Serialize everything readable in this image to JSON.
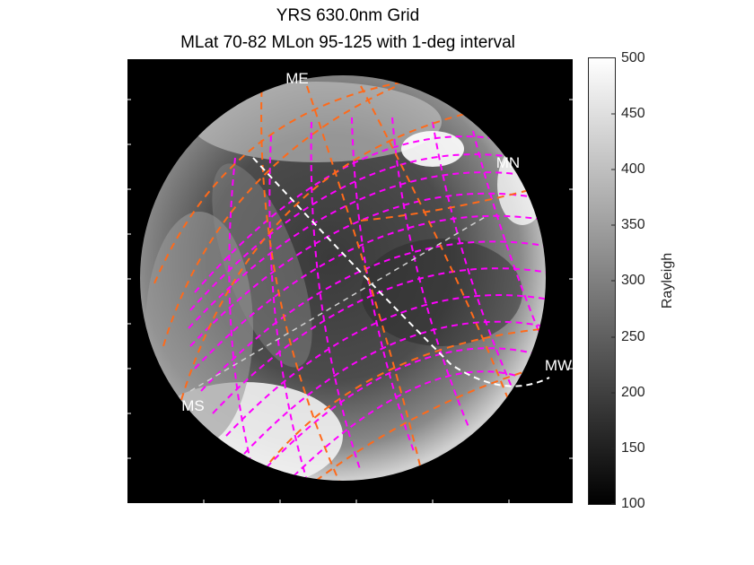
{
  "figure": {
    "title_line1": "YRS 630.0nm Grid",
    "title_line2": "MLat 70-82 MLon 95-125 with 1-deg interval"
  },
  "image": {
    "description": "all-sky airglow image in grayscale with magnetic coordinate grid overlay",
    "background_color": "#000000",
    "grid_color_magenta": "#ff00ff",
    "grid_color_orange": "#ff6a1a",
    "meridian_color": "#ffffff"
  },
  "direction_labels": {
    "me": "ME",
    "mn": "MN",
    "mw": "MW",
    "ms": "MS"
  },
  "colorbar": {
    "label": "Rayleigh",
    "min": 100,
    "max": 500,
    "ticks": [
      "500",
      "450",
      "400",
      "350",
      "300",
      "250",
      "200",
      "150",
      "100"
    ]
  }
}
